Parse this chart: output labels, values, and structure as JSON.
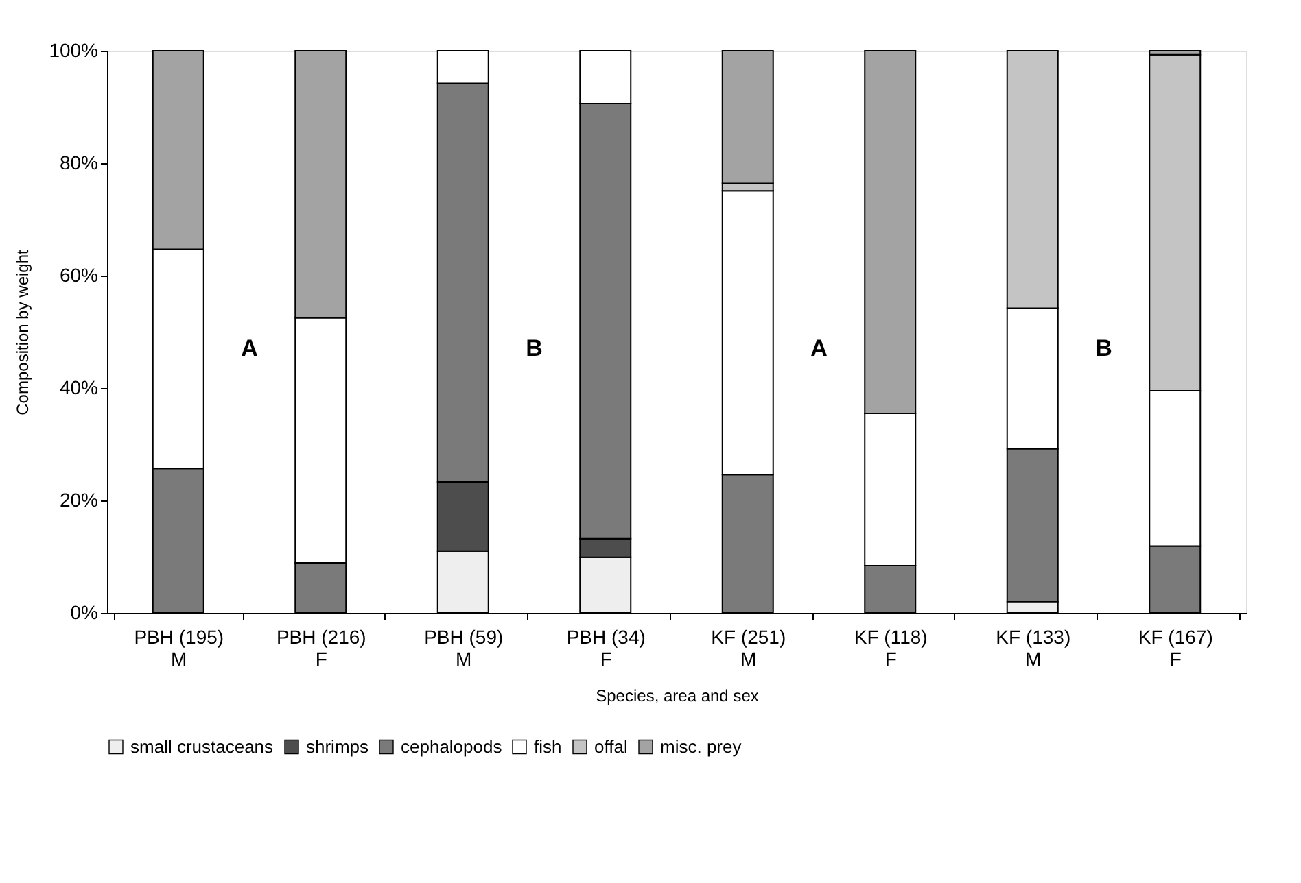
{
  "chart_data": {
    "type": "bar",
    "stacked": true,
    "categories": [
      "PBH (195)\nM",
      "PBH (216)\nF",
      "PBH (59)\nM",
      "PBH (34)\nF",
      "KF (251)\nM",
      "KF (118)\nF",
      "KF (133)\nM",
      "KF (167)\nF"
    ],
    "xlabel": "Species, area and sex",
    "ylabel": "Composition by weight",
    "ylim": [
      0,
      100
    ],
    "yticks": [
      {
        "value": 0,
        "label": "0%"
      },
      {
        "value": 20,
        "label": "20%"
      },
      {
        "value": 40,
        "label": "40%"
      },
      {
        "value": 60,
        "label": "60%"
      },
      {
        "value": 80,
        "label": "80%"
      },
      {
        "value": 100,
        "label": "100%"
      }
    ],
    "grid": false,
    "legend": "bottom",
    "annotations": [
      "A",
      "B",
      "A",
      "B"
    ],
    "series": [
      {
        "name": "small crustaceans",
        "color": "#eeeeee",
        "values": [
          null,
          null,
          11,
          9.9,
          null,
          null,
          2,
          null
        ]
      },
      {
        "name": "shrimps",
        "color": "#4d4d4d",
        "values": [
          null,
          null,
          12.3,
          3.3,
          null,
          null,
          null,
          null
        ]
      },
      {
        "name": "cephalopods",
        "color": "#7a7a7a",
        "values": [
          25.7,
          8.9,
          70.9,
          77.4,
          24.6,
          8.4,
          27.2,
          11.9
        ]
      },
      {
        "name": "fish",
        "color": "#ffffff",
        "values": [
          39,
          43.6,
          5.8,
          9.4,
          50.5,
          27.1,
          25,
          27.6
        ]
      },
      {
        "name": "offal",
        "color": "#c4c4c4",
        "values": [
          null,
          null,
          null,
          null,
          1.3,
          null,
          45.8,
          59.8
        ]
      },
      {
        "name": "misc. prey",
        "color": "#a3a3a3",
        "values": [
          35.3,
          47.5,
          null,
          null,
          23.6,
          64.5,
          null,
          0.7
        ]
      }
    ]
  }
}
